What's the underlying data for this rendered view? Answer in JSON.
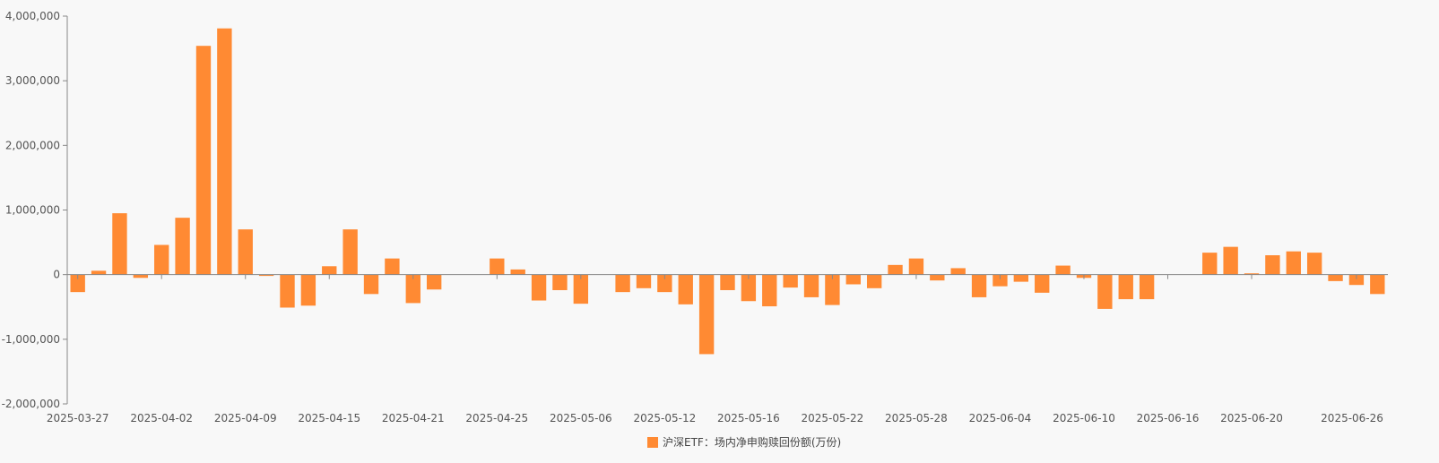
{
  "chart_data": {
    "type": "bar",
    "ylim": [
      -2000000,
      4000000
    ],
    "y_ticks": [
      -2000000,
      -1000000,
      0,
      1000000,
      2000000,
      3000000,
      4000000
    ],
    "y_tick_labels": [
      "-2,000,000",
      "-1,000,000",
      "0",
      "1,000,000",
      "2,000,000",
      "3,000,000",
      "4,000,000"
    ],
    "x_tick_labels": [
      "2025-03-27",
      "2025-04-02",
      "2025-04-09",
      "2025-04-15",
      "2025-04-21",
      "2025-04-25",
      "2025-05-06",
      "2025-05-12",
      "2025-05-16",
      "2025-05-22",
      "2025-05-28",
      "2025-06-04",
      "2025-06-10",
      "2025-06-16",
      "2025-06-20",
      "2025-06-26"
    ],
    "x_tick_indices": [
      0,
      4,
      8,
      12,
      16,
      20,
      24,
      28,
      32,
      36,
      40,
      44,
      48,
      52,
      56,
      61
    ],
    "grid": false,
    "legend_position": "bottom-center",
    "series": [
      {
        "name": "沪深ETF：场内净申购赎回份额(万份)",
        "color": "#ff8a33",
        "values": [
          -270000,
          60000,
          950000,
          -50000,
          460000,
          880000,
          3540000,
          3810000,
          700000,
          -20000,
          -510000,
          -480000,
          130000,
          700000,
          -300000,
          250000,
          -440000,
          -230000,
          0,
          0,
          250000,
          80000,
          -400000,
          -240000,
          -450000,
          0,
          -270000,
          -210000,
          -270000,
          -460000,
          -1230000,
          -240000,
          -410000,
          -490000,
          -200000,
          -350000,
          -470000,
          -150000,
          -210000,
          150000,
          250000,
          -90000,
          100000,
          -350000,
          -180000,
          -110000,
          -280000,
          140000,
          -50000,
          -530000,
          -380000,
          -380000,
          0,
          0,
          340000,
          430000,
          20000,
          300000,
          360000,
          340000,
          -100000,
          -160000,
          -300000
        ]
      }
    ]
  }
}
